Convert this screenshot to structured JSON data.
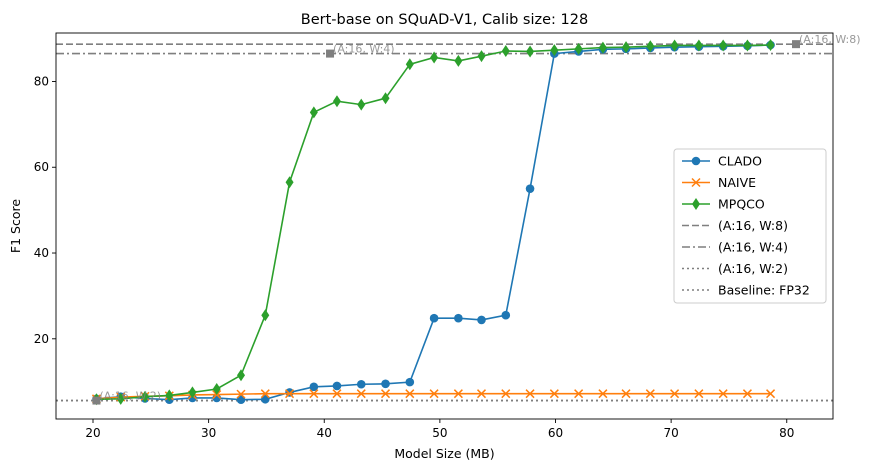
{
  "chart_data": {
    "type": "line",
    "title": "Bert-base on SQuAD-V1, Calib size: 128",
    "xlabel": "Model Size (MB)",
    "ylabel": "F1 Score",
    "xlim": [
      16.8,
      84.0
    ],
    "ylim": [
      1.3,
      91.3
    ],
    "xticks": [
      20,
      30,
      40,
      50,
      60,
      70,
      80
    ],
    "yticks": [
      20,
      40,
      60,
      80
    ],
    "grid": false,
    "legend_position": "center-right",
    "series": [
      {
        "name": "CLADO",
        "color": "#1f77b4",
        "marker": "circle",
        "x": [
          20.3,
          22.4,
          24.5,
          26.6,
          28.6,
          30.7,
          32.8,
          34.9,
          37.0,
          39.1,
          41.1,
          43.2,
          45.3,
          47.4,
          49.5,
          51.6,
          53.6,
          55.7,
          57.8,
          59.9,
          62.0,
          64.1,
          66.1,
          68.2,
          70.3,
          72.4,
          74.5,
          76.6,
          78.6
        ],
        "y": [
          6.0,
          6.5,
          6.1,
          5.8,
          6.2,
          6.2,
          5.8,
          5.9,
          7.5,
          8.8,
          9.0,
          9.4,
          9.5,
          9.9,
          24.8,
          24.8,
          24.4,
          25.5,
          55.0,
          86.5,
          87.0,
          87.5,
          87.6,
          87.8,
          88.0,
          88.1,
          88.2,
          88.3,
          88.5
        ]
      },
      {
        "name": "NAIVE",
        "color": "#ff7f0e",
        "marker": "x",
        "x": [
          20.3,
          22.4,
          24.5,
          26.6,
          28.6,
          30.7,
          32.8,
          34.9,
          37.0,
          39.1,
          41.1,
          43.2,
          45.3,
          47.4,
          49.5,
          51.6,
          53.6,
          55.7,
          57.8,
          59.9,
          62.0,
          64.1,
          66.1,
          68.2,
          70.3,
          72.4,
          74.5,
          76.6,
          78.6
        ],
        "y": [
          6.0,
          6.4,
          6.6,
          6.7,
          6.9,
          7.0,
          7.1,
          7.2,
          7.2,
          7.2,
          7.2,
          7.2,
          7.2,
          7.2,
          7.2,
          7.2,
          7.2,
          7.2,
          7.2,
          7.2,
          7.2,
          7.2,
          7.2,
          7.2,
          7.2,
          7.2,
          7.2,
          7.2,
          7.2
        ]
      },
      {
        "name": "MPQCO",
        "color": "#2ca02c",
        "marker": "diamond",
        "x": [
          20.3,
          22.4,
          24.5,
          26.6,
          28.6,
          30.7,
          32.8,
          34.9,
          37.0,
          39.1,
          41.1,
          43.2,
          45.3,
          47.4,
          49.5,
          51.6,
          53.6,
          55.7,
          57.8,
          59.9,
          62.0,
          64.1,
          66.1,
          68.2,
          70.3,
          72.4,
          74.5,
          76.6,
          78.6
        ],
        "y": [
          5.9,
          6.0,
          6.5,
          6.8,
          7.5,
          8.3,
          11.5,
          25.5,
          56.5,
          72.8,
          75.4,
          74.6,
          76.1,
          84.0,
          85.6,
          84.8,
          85.9,
          87.1,
          87.0,
          87.3,
          87.6,
          87.9,
          88.0,
          88.2,
          88.4,
          88.4,
          88.4,
          88.4,
          88.5
        ]
      }
    ],
    "reference_lines": [
      {
        "name": "(A:16, W:8)",
        "y": 88.7,
        "style": "dashed",
        "color": "#7f7f7f"
      },
      {
        "name": "(A:16, W:4)",
        "y": 86.5,
        "style": "dashdot",
        "color": "#7f7f7f"
      },
      {
        "name": "(A:16, W:2)",
        "y": 5.6,
        "style": "dotted",
        "color": "#7f7f7f"
      },
      {
        "name": "Baseline: FP32",
        "y": 5.6,
        "style": "dotted",
        "color": "#7f7f7f"
      }
    ],
    "annotations": [
      {
        "text": "(A:16, W:8)",
        "x": 80.8,
        "y": 88.7
      },
      {
        "text": "(A:16, W:4)",
        "x": 40.5,
        "y": 86.5
      },
      {
        "text": "(A:16, W:2)",
        "x": 20.3,
        "y": 5.6
      }
    ]
  }
}
